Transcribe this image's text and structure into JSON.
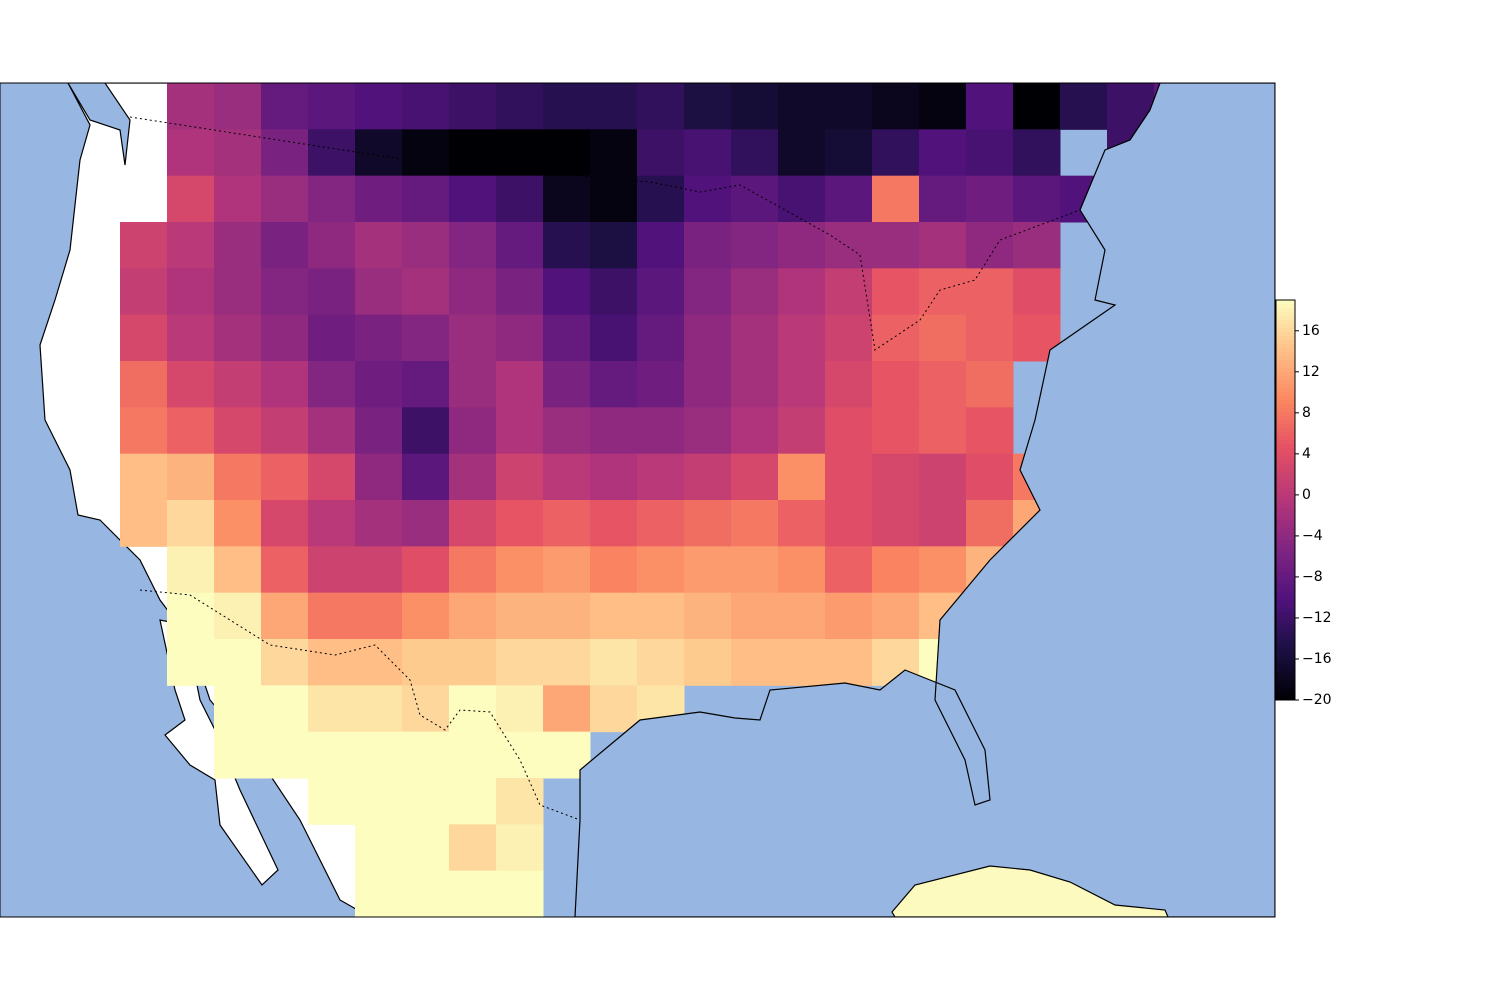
{
  "chart_data": {
    "type": "heatmap",
    "colormap": "magma",
    "clim": [
      -20,
      19
    ],
    "cticks": [
      {
        "value": -20,
        "label": "−20"
      },
      {
        "value": -16,
        "label": "−16"
      },
      {
        "value": -12,
        "label": "−12"
      },
      {
        "value": -8,
        "label": "−8"
      },
      {
        "value": -4,
        "label": "−4"
      },
      0,
      4,
      8,
      12,
      16
    ],
    "grid": [
      [
        null,
        -2,
        -3,
        -8,
        -9,
        -10,
        -11,
        -12,
        -13,
        -14,
        -14,
        -13,
        -15,
        -16,
        -17,
        -17,
        -18,
        -19,
        -10,
        -20,
        -14,
        -12,
        -9
      ],
      [
        null,
        -1,
        -2,
        -6,
        -12,
        -17,
        -19,
        -20,
        -20,
        -20,
        -19,
        -12,
        -11,
        -13,
        -17,
        -16,
        -13,
        -10,
        -11,
        -13,
        null,
        -12,
        -8
      ],
      [
        null,
        3,
        -1,
        -3,
        -5,
        -7,
        -8,
        -10,
        -12,
        -18,
        -19,
        -14,
        -10,
        -9,
        -11,
        -9,
        8,
        -8,
        -7,
        -9,
        -10,
        null,
        -6
      ],
      [
        2,
        0,
        -3,
        -6,
        -4,
        -2,
        -3,
        -5,
        -8,
        -14,
        -15,
        -10,
        -6,
        -5,
        -4,
        -3,
        -3,
        -2,
        -4,
        -3,
        null,
        null,
        null
      ],
      [
        1,
        -1,
        -3,
        -5,
        -6,
        -3,
        -2,
        -4,
        -6,
        -10,
        -12,
        -9,
        -5,
        -3,
        -1,
        1,
        5,
        6,
        6,
        4,
        null,
        null,
        null
      ],
      [
        3,
        0,
        -2,
        -4,
        -7,
        -6,
        -5,
        -3,
        -4,
        -8,
        -11,
        -8,
        -4,
        -2,
        0,
        2,
        6,
        7,
        6,
        5,
        null,
        null,
        null
      ],
      [
        7,
        3,
        1,
        -1,
        -5,
        -7,
        -8,
        -3,
        -1,
        -6,
        -8,
        -7,
        -4,
        -2,
        0,
        3,
        5,
        6,
        7,
        null,
        null,
        null,
        null
      ],
      [
        8,
        6,
        3,
        1,
        -2,
        -6,
        -12,
        -4,
        -1,
        -3,
        -4,
        -4,
        -3,
        -1,
        1,
        4,
        5,
        6,
        5,
        null,
        null,
        null,
        null
      ],
      [
        14,
        13,
        8,
        6,
        3,
        -4,
        -9,
        -2,
        2,
        0,
        -1,
        0,
        1,
        3,
        10,
        4,
        3,
        2,
        4,
        8,
        null,
        null,
        null
      ],
      [
        14,
        16,
        10,
        3,
        0,
        -2,
        -3,
        3,
        5,
        6,
        5,
        6,
        7,
        8,
        6,
        4,
        3,
        2,
        7,
        12,
        null,
        null,
        null
      ],
      [
        null,
        18,
        14,
        6,
        2,
        2,
        4,
        8,
        10,
        11,
        9,
        10,
        11,
        11,
        10,
        6,
        9,
        10,
        13,
        null,
        null,
        null,
        null
      ],
      [
        null,
        19,
        18,
        12,
        8,
        8,
        10,
        12,
        13,
        13,
        14,
        14,
        13,
        12,
        12,
        11,
        12,
        14,
        null,
        null,
        null,
        null,
        null
      ],
      [
        null,
        19,
        19,
        16,
        14,
        14,
        15,
        15,
        16,
        16,
        17,
        16,
        15,
        14,
        14,
        14,
        16,
        19,
        null,
        null,
        null,
        null,
        null
      ],
      [
        null,
        null,
        19,
        19,
        17,
        17,
        16,
        19,
        18,
        12,
        16,
        17,
        null,
        null,
        null,
        null,
        null,
        19,
        null,
        null,
        null,
        null,
        null
      ],
      [
        null,
        null,
        19,
        19,
        19,
        19,
        19,
        19,
        19,
        19,
        null,
        null,
        null,
        null,
        null,
        null,
        null,
        null,
        null,
        null,
        null,
        null,
        null
      ],
      [
        null,
        null,
        null,
        null,
        19,
        19,
        19,
        19,
        17,
        null,
        null,
        null,
        null,
        null,
        null,
        null,
        null,
        null,
        null,
        null,
        null,
        null,
        null
      ],
      [
        null,
        null,
        null,
        null,
        null,
        19,
        19,
        16,
        18,
        null,
        null,
        null,
        null,
        null,
        null,
        null,
        null,
        null,
        null,
        null,
        null,
        null,
        null
      ],
      [
        null,
        null,
        null,
        null,
        null,
        19,
        19,
        19,
        19,
        null,
        null,
        null,
        null,
        null,
        null,
        null,
        null,
        null,
        null,
        null,
        null,
        null,
        null
      ]
    ]
  }
}
